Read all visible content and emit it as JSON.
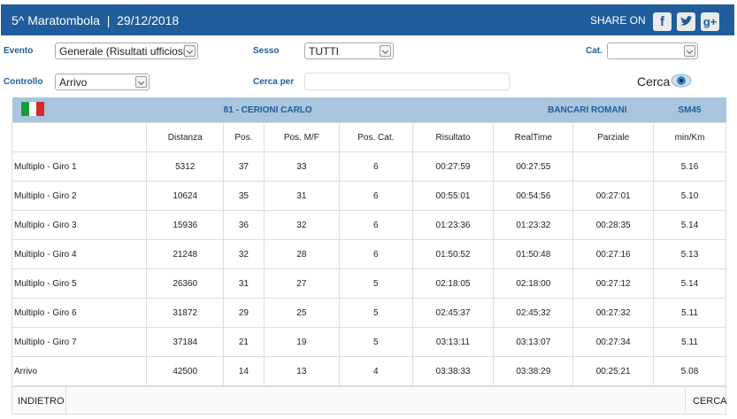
{
  "header": {
    "title": "5^ Maratombola  |  29/12/2018",
    "share_label": "SHARE ON",
    "share_icons": [
      "f",
      "g+"
    ]
  },
  "filters": {
    "evento_label": "Evento",
    "evento_value": "Generale (Risultati ufficiosi)",
    "sesso_label": "Sesso",
    "sesso_value": "TUTTI",
    "cat_label": "Cat.",
    "controllo_label": "Controllo",
    "controllo_value": "Arrivo",
    "cerca_per_label": "Cerca per",
    "cerca_button": "Cerca"
  },
  "athlete": {
    "name": "81 - CERIONI CARLO",
    "team": "BANCARI ROMANI",
    "category": "SM45"
  },
  "table": {
    "columns": [
      null,
      "Distanza",
      "Pos.",
      "Pos. M/F",
      "Pos. Cat.",
      "Risultato",
      "RealTime",
      "Parziale",
      "min/Km"
    ],
    "rows": [
      [
        "Multiplo - Giro 1",
        "5312",
        "37",
        "33",
        "6",
        "00:27:59",
        "00:27:55",
        null,
        "5.16"
      ],
      [
        "Multiplo - Giro 2",
        "10624",
        "35",
        "31",
        "6",
        "00:55:01",
        "00:54:56",
        "00:27:01",
        "5.10"
      ],
      [
        "Multiplo - Giro 3",
        "15936",
        "36",
        "32",
        "6",
        "01:23:36",
        "01:23:32",
        "00:28:35",
        "5.14"
      ],
      [
        "Multiplo - Giro 4",
        "21248",
        "32",
        "28",
        "6",
        "01:50:52",
        "01:50:48",
        "00:27:16",
        "5.13"
      ],
      [
        "Multiplo - Giro 5",
        "26360",
        "31",
        "27",
        "5",
        "02:18:05",
        "02:18:00",
        "00:27:12",
        "5.14"
      ],
      [
        "Multiplo - Giro 6",
        "31872",
        "29",
        "25",
        "5",
        "02:45:37",
        "02:45:32",
        "00:27:32",
        "5.11"
      ],
      [
        "Multiplo - Giro 7",
        "37184",
        "21",
        "19",
        "5",
        "03:13:11",
        "03:13:07",
        "00:27:34",
        "5.11"
      ],
      [
        "Arrivo",
        "42500",
        "14",
        "13",
        "4",
        "03:38:33",
        "03:38:29",
        "00:25:21",
        "5.08"
      ]
    ]
  },
  "footer": {
    "back": "INDIETRO",
    "search": "CERCA"
  }
}
